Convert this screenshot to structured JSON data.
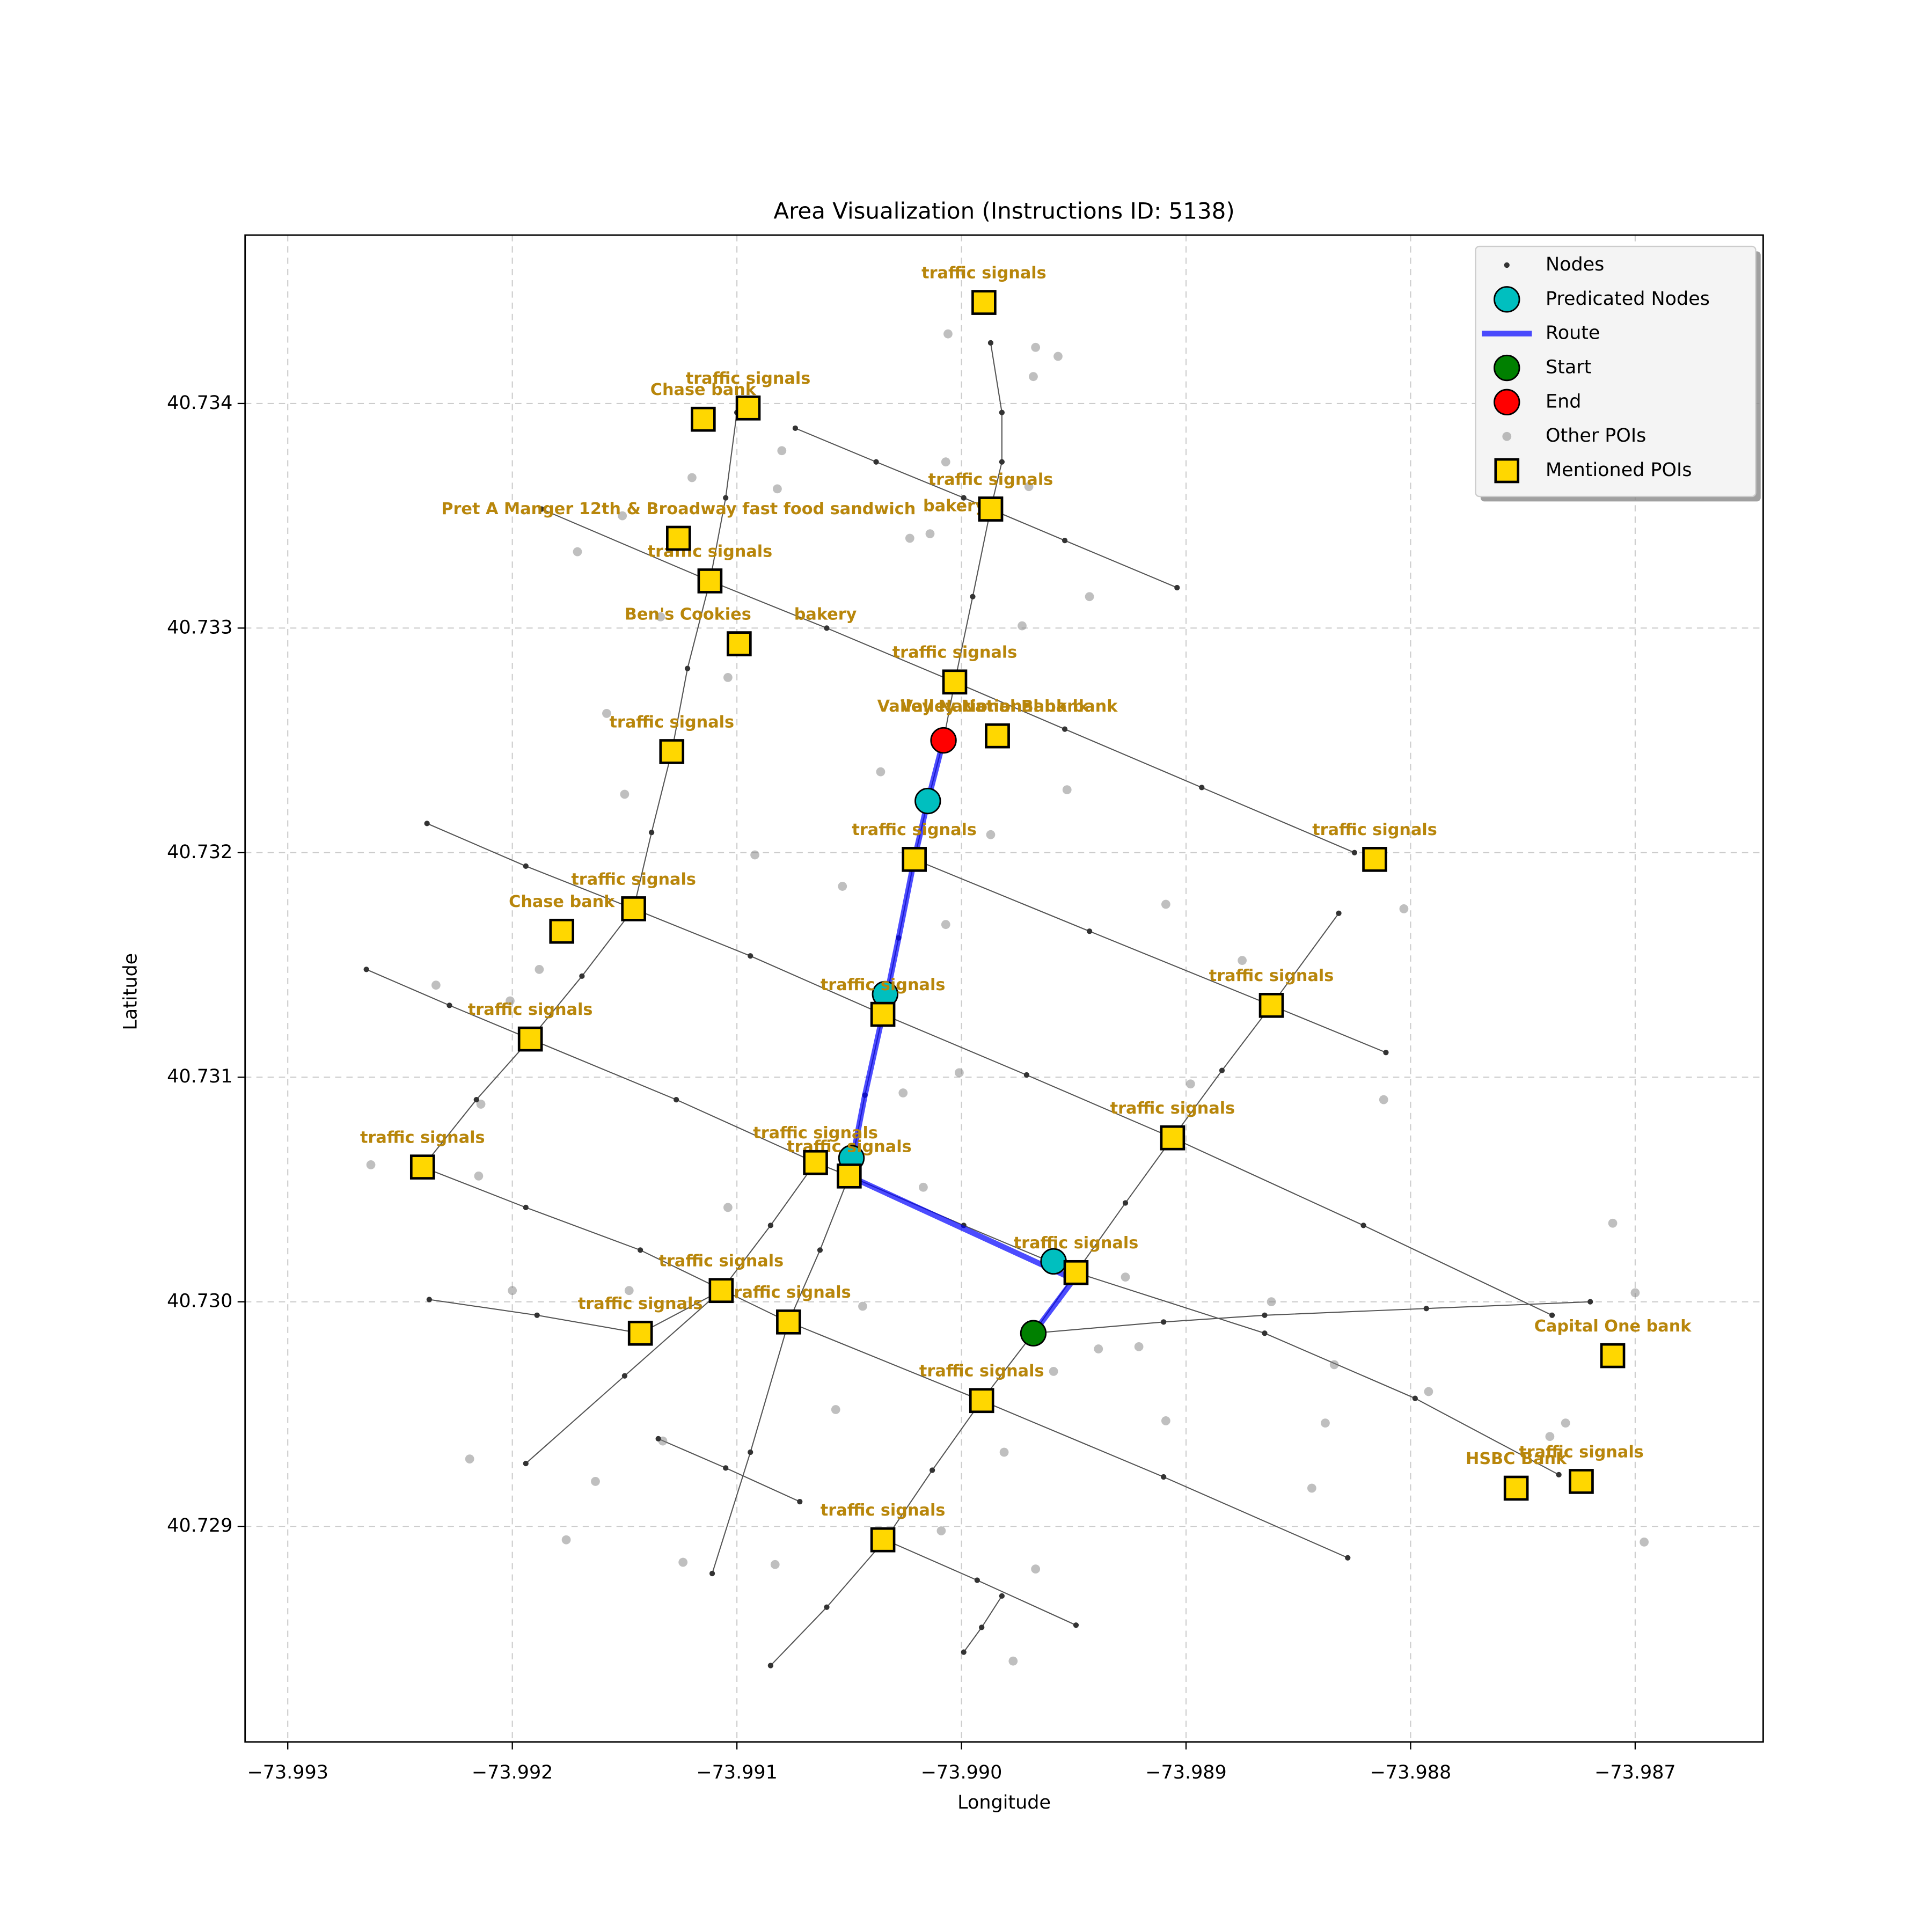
{
  "chart_data": {
    "type": "scatter",
    "title": "Area Visualization (Instructions ID: 5138)",
    "xlabel": "Longitude",
    "ylabel": "Latitude",
    "xlim": [
      -73.99319,
      -73.98643
    ],
    "ylim": [
      40.72804,
      40.73475
    ],
    "xticks": [
      {
        "value": -73.993,
        "label": "−73.993"
      },
      {
        "value": -73.992,
        "label": "−73.992"
      },
      {
        "value": -73.991,
        "label": "−73.991"
      },
      {
        "value": -73.99,
        "label": "−73.990"
      },
      {
        "value": -73.989,
        "label": "−73.989"
      },
      {
        "value": -73.988,
        "label": "−73.988"
      },
      {
        "value": -73.987,
        "label": "−73.987"
      }
    ],
    "yticks": [
      40.729,
      {
        "value": 40.73,
        "label": "40.730"
      },
      40.731,
      40.732,
      40.733,
      40.734
    ],
    "grid": true,
    "legend": "upper right",
    "nodes": {
      "name": "Nodes",
      "color": "#333333",
      "edge_color": "#555555",
      "streets": [
        {
          "x": [
            -73.99074,
            -73.99038,
            -73.98999,
            -73.98954,
            -73.98904
          ],
          "y": [
            40.73389,
            40.73374,
            40.73358,
            40.73339,
            40.73318
          ]
        },
        {
          "x": [
            -73.99187,
            -73.99112,
            -73.9906,
            -73.99003,
            -73.98954,
            -73.98893,
            -73.98825
          ],
          "y": [
            40.73353,
            40.73321,
            40.733,
            40.73276,
            40.73255,
            40.73229,
            40.732
          ]
        },
        {
          "x": [
            -73.99238,
            -73.99194,
            -73.99146,
            -73.99094,
            -73.99035,
            -73.98971,
            -73.98906,
            -73.98821,
            -73.98737
          ],
          "y": [
            40.73213,
            40.73194,
            40.73175,
            40.73154,
            40.73128,
            40.73101,
            40.73073,
            40.73034,
            40.72994
          ]
        },
        {
          "x": [
            -73.99265,
            -73.99228,
            -73.99192,
            -73.99127,
            -73.99065,
            -73.9905
          ],
          "y": [
            40.73148,
            40.73132,
            40.73117,
            40.7309,
            40.73062,
            40.73056
          ]
        },
        {
          "x": [
            -73.9924,
            -73.99194,
            -73.99143,
            -73.99077,
            -73.98991,
            -73.9891,
            -73.98828
          ],
          "y": [
            40.7306,
            40.73042,
            40.73023,
            40.72991,
            40.72956,
            40.72922,
            40.72886
          ]
        },
        {
          "x": [
            -73.99021,
            -73.98943,
            -73.98862,
            -73.98811
          ],
          "y": [
            40.73197,
            40.73165,
            40.73132,
            40.73111
          ]
        },
        {
          "x": [
            -73.9905,
            -73.98999,
            -73.98949,
            -73.98865,
            -73.98798,
            -73.98734
          ],
          "y": [
            40.73056,
            40.73034,
            40.73013,
            40.72986,
            40.72957,
            40.72923
          ]
        },
        {
          "x": [
            -73.99237,
            -73.99189,
            -73.99143,
            -73.99107
          ],
          "y": [
            40.73001,
            40.72994,
            40.72986,
            40.73005
          ]
        },
        {
          "x": [
            -73.98968,
            -73.9891,
            -73.98865,
            -73.98793,
            -73.9872
          ],
          "y": [
            40.72986,
            40.72991,
            40.72994,
            40.72997,
            40.73
          ]
        },
        {
          "x": [
            -73.99135,
            -73.99105,
            -73.99072
          ],
          "y": [
            40.72939,
            40.72926,
            40.72911
          ]
        },
        {
          "x": [
            -73.99034,
            -73.98993,
            -73.98949
          ],
          "y": [
            40.72894,
            40.72876,
            40.72856
          ]
        },
        {
          "x": [
            -73.98987,
            -73.98982,
            -73.98982,
            -73.98987,
            -73.98995,
            -73.99003,
            -73.99008
          ],
          "y": [
            40.73427,
            40.73396,
            40.73374,
            40.73353,
            40.73314,
            40.73276,
            40.7325
          ]
        },
        {
          "x": [
            -73.991,
            -73.99105,
            -73.99112,
            -73.99122,
            -73.99129,
            -73.99138,
            -73.99146,
            -73.99169,
            -73.99192,
            -73.99216,
            -73.9924
          ],
          "y": [
            40.73396,
            40.73358,
            40.73321,
            40.73282,
            40.73245,
            40.73209,
            40.73175,
            40.73145,
            40.73117,
            40.7309,
            40.7306
          ]
        },
        {
          "x": [
            -73.99008,
            -73.99015,
            -73.99021,
            -73.99028,
            -73.99035,
            -73.99043,
            -73.9905
          ],
          "y": [
            40.7325,
            40.73223,
            40.73197,
            40.73162,
            40.73128,
            40.73092,
            40.73056
          ]
        },
        {
          "x": [
            -73.98832,
            -73.98862,
            -73.98884,
            -73.98906,
            -73.98927,
            -73.98949,
            -73.98968,
            -73.98991,
            -73.99013,
            -73.99034,
            -73.9906,
            -73.99085
          ],
          "y": [
            40.73173,
            40.73132,
            40.73103,
            40.73073,
            40.73044,
            40.73013,
            40.72986,
            40.72956,
            40.72925,
            40.72894,
            40.72864,
            40.72838
          ]
        },
        {
          "x": [
            -73.99065,
            -73.99085,
            -73.99107,
            -73.9915,
            -73.99194
          ],
          "y": [
            40.73062,
            40.73034,
            40.73005,
            40.72967,
            40.72928
          ]
        },
        {
          "x": [
            -73.9905,
            -73.99063,
            -73.99077,
            -73.99094,
            -73.99111
          ],
          "y": [
            40.73056,
            40.73023,
            40.72991,
            40.72933,
            40.72879
          ]
        },
        {
          "x": [
            -73.98982,
            -73.98991,
            -73.98999
          ],
          "y": [
            40.72869,
            40.72855,
            40.72844
          ]
        }
      ]
    },
    "predicted": {
      "name": "Predicated Nodes",
      "color": "#00bfbf",
      "x": [
        -73.99015,
        -73.99034,
        -73.99049,
        -73.98959
      ],
      "y": [
        40.73223,
        40.73137,
        40.73064,
        40.73018
      ]
    },
    "route": {
      "name": "Route",
      "color": "#0000ff",
      "x": [
        -73.98968,
        -73.9895,
        -73.9905,
        -73.99043,
        -73.99035,
        -73.99028,
        -73.99021,
        -73.99015,
        -73.99008
      ],
      "y": [
        40.72986,
        40.7301,
        40.73056,
        40.73092,
        40.73128,
        40.73162,
        40.73197,
        40.73223,
        40.7325
      ]
    },
    "start": {
      "name": "Start",
      "color": "#008000",
      "x": [
        -73.98968
      ],
      "y": [
        40.72986
      ]
    },
    "end": {
      "name": "End",
      "color": "#ff0000",
      "x": [
        -73.99008
      ],
      "y": [
        40.7325
      ]
    },
    "other_pois": {
      "name": "Other POIs",
      "color": "#808080",
      "x": [
        -73.99006,
        -73.98967,
        -73.98957,
        -73.98968,
        -73.9912,
        -73.9908,
        -73.99082,
        -73.99007,
        -73.9897,
        -73.99151,
        -73.99023,
        -73.99014,
        -73.99171,
        -73.98943,
        -73.98973,
        -73.99134,
        -73.99104,
        -73.99158,
        -73.99036,
        -73.98953,
        -73.9915,
        -73.98987,
        -73.99092,
        -73.99053,
        -73.98909,
        -73.98803,
        -73.99007,
        -73.98875,
        -73.99188,
        -73.99201,
        -73.99234,
        -73.99001,
        -73.98898,
        -73.99026,
        -73.98812,
        -73.99214,
        -73.99263,
        -73.99215,
        -73.99017,
        -73.99104,
        -73.9871,
        -73.992,
        -73.99148,
        -73.99044,
        -73.98927,
        -73.98862,
        -73.987,
        -73.98939,
        -73.98921,
        -73.98834,
        -73.98792,
        -73.98909,
        -73.98838,
        -73.99056,
        -73.98981,
        -73.98738,
        -73.98731,
        -73.99219,
        -73.99163,
        -73.98844,
        -73.99133,
        -73.99009,
        -73.99083,
        -73.99124,
        -73.98967,
        -73.99176,
        -73.98696,
        -73.98977,
        -73.98959
      ],
      "y": [
        40.73431,
        40.73425,
        40.73421,
        40.73412,
        40.73367,
        40.73379,
        40.73362,
        40.73374,
        40.73363,
        40.7335,
        40.7334,
        40.73342,
        40.73334,
        40.73314,
        40.73301,
        40.73305,
        40.73278,
        40.73262,
        40.73236,
        40.73228,
        40.73226,
        40.73208,
        40.73199,
        40.73185,
        40.73177,
        40.73175,
        40.73168,
        40.73152,
        40.73148,
        40.73134,
        40.73141,
        40.73102,
        40.73097,
        40.73093,
        40.7309,
        40.73088,
        40.73061,
        40.73056,
        40.73051,
        40.73042,
        40.73035,
        40.73005,
        40.73005,
        40.72998,
        40.73011,
        40.73,
        40.73004,
        40.72979,
        40.7298,
        40.72972,
        40.7296,
        40.72947,
        40.72946,
        40.72952,
        40.72933,
        40.7294,
        40.72946,
        40.7293,
        40.7292,
        40.72917,
        40.72938,
        40.72898,
        40.72883,
        40.72884,
        40.72881,
        40.72894,
        40.72893,
        40.7284,
        40.72969
      ]
    },
    "mentioned_pois": {
      "name": "Mentioned POIs",
      "color": "#ffd700",
      "label_color": "#b8860b",
      "labels": [
        "traffic signals",
        "Chase bank",
        "traffic signals",
        "Pret A Manger 12th & Broadway fast food sandwich",
        "traffic signals",
        "bakery",
        "traffic signals",
        "Ben's Cookies",
        "bakery",
        "traffic signals",
        "Valley National Bank bank",
        "Valley National bank",
        "traffic signals",
        "traffic signals",
        "traffic signals",
        "Chase bank",
        "traffic signals",
        "traffic signals",
        "traffic signals",
        "traffic signals",
        "traffic signals",
        "traffic signals",
        "traffic signals",
        "traffic signals",
        "traffic signals",
        "traffic signals",
        "traffic signals",
        "traffic signals",
        "Capital One bank",
        "traffic signals",
        "HSBC Bank",
        "traffic signals",
        "traffic signals"
      ],
      "x": [
        -73.9899,
        -73.99115,
        -73.99095,
        -73.99126,
        -73.98987,
        -73.98987,
        -73.99112,
        -73.99099,
        -73.99099,
        -73.99003,
        -73.98984,
        -73.98984,
        -73.99129,
        -73.99021,
        -73.98816,
        -73.99178,
        -73.99146,
        -73.99035,
        -73.98862,
        -73.99192,
        -73.98906,
        -73.9924,
        -73.99065,
        -73.9905,
        -73.98949,
        -73.99107,
        -73.99077,
        -73.99143,
        -73.9871,
        -73.98991,
        -73.98753,
        -73.98724,
        -73.99035
      ],
      "y": [
        40.73445,
        40.73393,
        40.73398,
        40.7334,
        40.73353,
        40.73353,
        40.73321,
        40.73293,
        40.73293,
        40.73276,
        40.73252,
        40.73252,
        40.73245,
        40.73197,
        40.73197,
        40.73165,
        40.73175,
        40.73128,
        40.73132,
        40.73117,
        40.73073,
        40.7306,
        40.73062,
        40.73056,
        40.73013,
        40.73005,
        40.72991,
        40.72986,
        40.72976,
        40.72956,
        40.72917,
        40.7292,
        40.72894
      ]
    }
  }
}
